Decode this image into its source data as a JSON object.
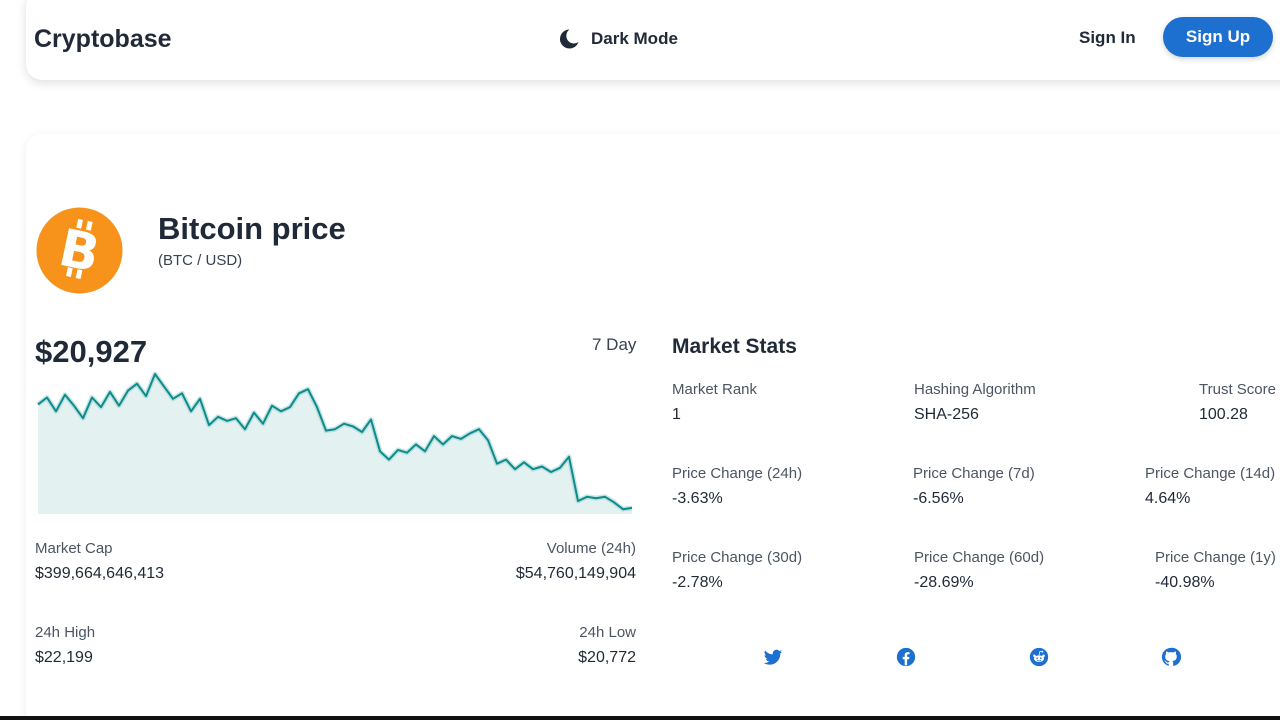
{
  "header": {
    "brand": "Cryptobase",
    "dark_mode_label": "Dark Mode",
    "sign_in_label": "Sign In",
    "sign_up_label": "Sign Up",
    "accent_color": "#1d6fd0"
  },
  "coin": {
    "title": "Bitcoin price",
    "pair": "(BTC / USD)",
    "logo_icon": "bitcoin-icon",
    "logo_color": "#f7931a",
    "price": "$20,927",
    "range_label": "7 Day"
  },
  "sparkline": {
    "line_color": "#0f8a8a",
    "fill_color": "#e3f1f1",
    "values": [
      0.78,
      0.83,
      0.73,
      0.85,
      0.77,
      0.68,
      0.83,
      0.76,
      0.87,
      0.77,
      0.88,
      0.93,
      0.84,
      1.0,
      0.91,
      0.82,
      0.86,
      0.73,
      0.82,
      0.63,
      0.69,
      0.66,
      0.68,
      0.6,
      0.72,
      0.64,
      0.77,
      0.73,
      0.76,
      0.86,
      0.89,
      0.76,
      0.59,
      0.6,
      0.64,
      0.62,
      0.58,
      0.67,
      0.44,
      0.38,
      0.45,
      0.43,
      0.49,
      0.44,
      0.55,
      0.49,
      0.55,
      0.53,
      0.57,
      0.6,
      0.52,
      0.35,
      0.38,
      0.31,
      0.36,
      0.31,
      0.33,
      0.29,
      0.32,
      0.4,
      0.08,
      0.11,
      0.1,
      0.11,
      0.07,
      0.02,
      0.03
    ]
  },
  "stats": {
    "market_cap_label": "Market Cap",
    "market_cap_value": "$399,664,646,413",
    "volume_label": "Volume (24h)",
    "volume_value": "$54,760,149,904",
    "high_label": "24h High",
    "high_value": "$22,199",
    "low_label": "24h Low",
    "low_value": "$20,772"
  },
  "market_stats": {
    "title": "Market Stats",
    "rank_label": "Market Rank",
    "rank_value": "1",
    "algo_label": "Hashing Algorithm",
    "algo_value": "SHA-256",
    "trust_label": "Trust Score",
    "trust_value": "100.28",
    "pc24_label": "Price Change (24h)",
    "pc24_value": "-3.63%",
    "pc7_label": "Price Change (7d)",
    "pc7_value": "-6.56%",
    "pc14_label": "Price Change (14d)",
    "pc14_value": "4.64%",
    "pc30_label": "Price Change (30d)",
    "pc30_value": "-2.78%",
    "pc60_label": "Price Change (60d)",
    "pc60_value": "-28.69%",
    "pc1y_label": "Price Change (1y)",
    "pc1y_value": "-40.98%"
  },
  "social": {
    "icons": [
      "twitter-icon",
      "facebook-icon",
      "reddit-icon",
      "github-icon"
    ],
    "color": "#1d6fd0"
  }
}
